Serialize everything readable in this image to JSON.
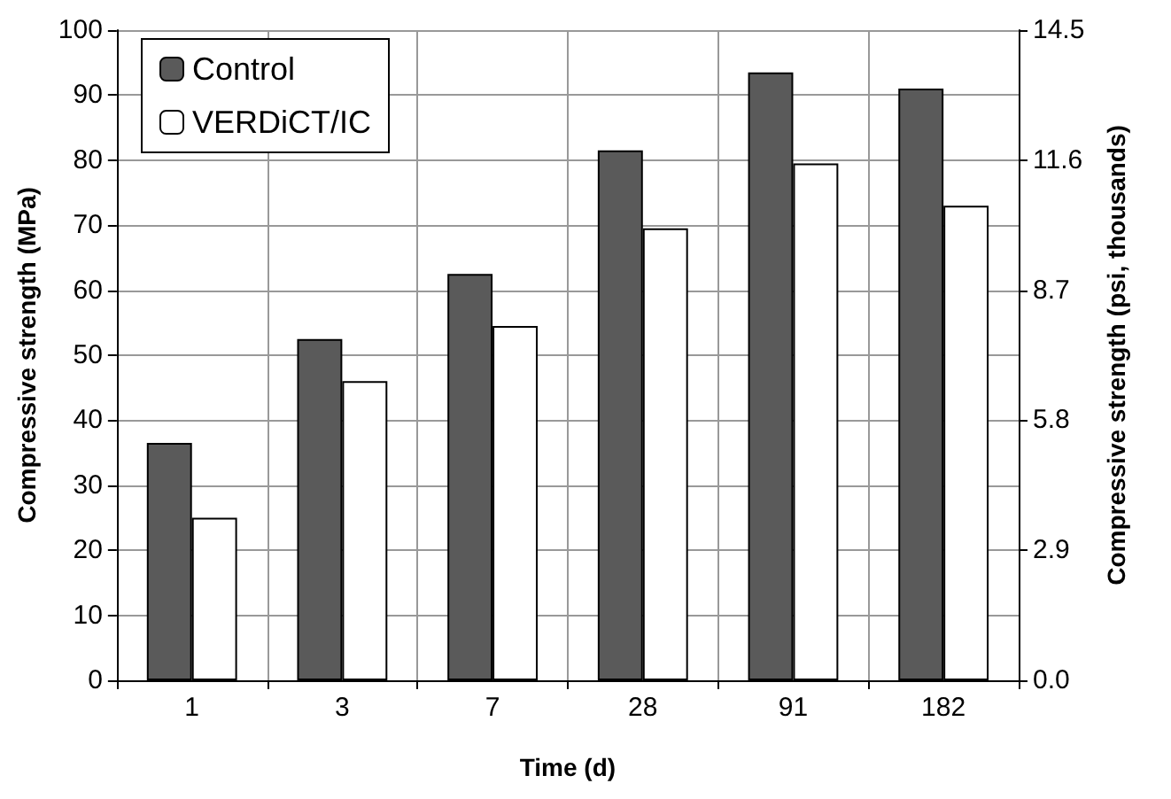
{
  "chart_data": {
    "type": "bar",
    "xlabel": "Time (d)",
    "ylabel": "Compressive strength (MPa)",
    "y2label": "Compressive strength (psi, thousands)",
    "categories": [
      "1",
      "3",
      "7",
      "28",
      "91",
      "182"
    ],
    "series": [
      {
        "name": "Control",
        "color": "#5a5a5a",
        "values": [
          36.5,
          52.5,
          62.5,
          81.5,
          93.5,
          91
        ]
      },
      {
        "name": "VERDiCT/IC",
        "color": "#ffffff",
        "values": [
          25,
          46,
          54.5,
          69.5,
          79.5,
          73
        ]
      }
    ],
    "ylim": [
      0,
      100
    ],
    "yticks": [
      0,
      10,
      20,
      30,
      40,
      50,
      60,
      70,
      80,
      90,
      100
    ],
    "y2lim": [
      0,
      14.5
    ],
    "y2ticks": [
      {
        "value": 0,
        "label": "0.0"
      },
      2.9,
      5.8,
      8.7,
      11.6,
      14.5
    ],
    "grid": true,
    "legend": "top left"
  }
}
